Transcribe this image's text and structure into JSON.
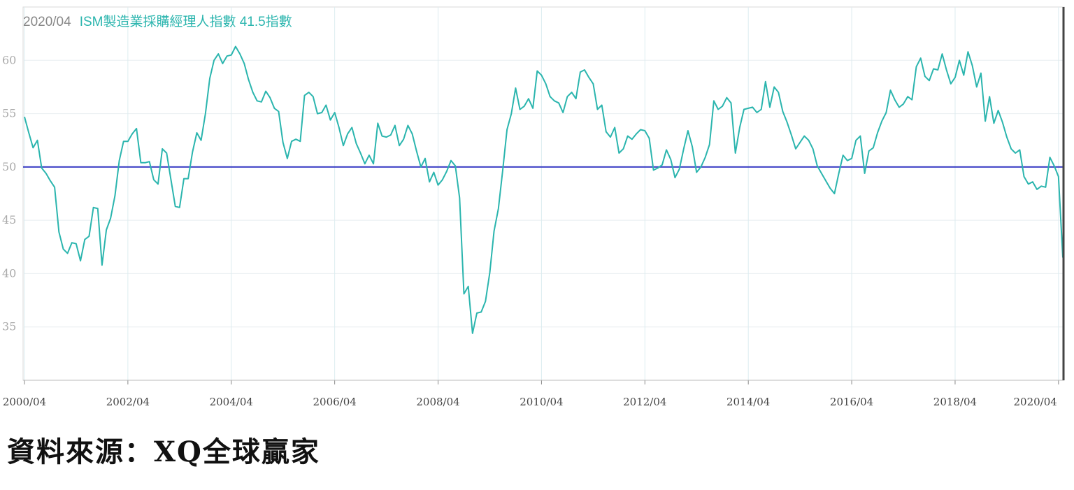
{
  "chart_data": {
    "type": "line",
    "title_date": "2020/04",
    "title_series": "ISM製造業採購經理人指數 41.5指數",
    "ylim": [
      30,
      65
    ],
    "yticks": [
      35,
      40,
      45,
      50,
      55,
      60
    ],
    "xticks": [
      "2000/04",
      "2002/04",
      "2004/04",
      "2006/04",
      "2008/04",
      "2010/04",
      "2012/04",
      "2014/04",
      "2016/04",
      "2018/04",
      "2020/04"
    ],
    "reference_line": 50,
    "grid": true,
    "x_start": "2000/04",
    "x_end": "2020/04",
    "series": [
      {
        "color": "#2bb5ae",
        "values": [
          54.7,
          53.2,
          51.8,
          52.5,
          49.9,
          49.4,
          48.7,
          48.1,
          43.9,
          42.3,
          41.9,
          42.9,
          42.8,
          41.2,
          43.2,
          43.5,
          46.2,
          46.1,
          40.8,
          44.1,
          45.2,
          47.3,
          50.6,
          52.4,
          52.4,
          53.1,
          53.6,
          50.4,
          50.4,
          50.5,
          48.8,
          48.4,
          51.7,
          51.3,
          48.8,
          46.3,
          46.2,
          48.9,
          48.9,
          51.4,
          53.2,
          52.5,
          55.0,
          58.3,
          60.0,
          60.6,
          59.7,
          60.4,
          60.5,
          61.3,
          60.6,
          59.7,
          58.2,
          57.0,
          56.2,
          56.1,
          57.1,
          56.5,
          55.5,
          55.2,
          52.3,
          50.8,
          52.4,
          52.6,
          52.4,
          56.7,
          57.0,
          56.6,
          55.0,
          55.1,
          55.8,
          54.4,
          55.1,
          53.7,
          52.0,
          53.1,
          53.7,
          52.2,
          51.3,
          50.3,
          51.1,
          50.3,
          54.1,
          52.9,
          52.8,
          53.0,
          53.9,
          52.0,
          52.6,
          53.9,
          53.1,
          51.5,
          50.0,
          50.8,
          48.6,
          49.5,
          48.3,
          48.8,
          49.6,
          50.6,
          50.1,
          47.1,
          38.1,
          38.8,
          34.4,
          36.3,
          36.4,
          37.4,
          40.1,
          44.0,
          46.1,
          49.7,
          53.5,
          55.0,
          57.4,
          55.4,
          55.7,
          56.4,
          55.5,
          59.0,
          58.6,
          57.8,
          56.6,
          56.2,
          56.0,
          55.1,
          56.6,
          57.0,
          56.4,
          58.9,
          59.1,
          58.4,
          57.8,
          55.4,
          55.8,
          53.3,
          52.8,
          53.7,
          51.3,
          51.7,
          52.9,
          52.6,
          53.1,
          53.5,
          53.4,
          52.7,
          49.7,
          49.9,
          50.2,
          51.6,
          50.7,
          49.0,
          49.8,
          51.7,
          53.4,
          51.9,
          49.5,
          50.0,
          50.9,
          52.1,
          56.2,
          55.4,
          55.7,
          56.5,
          56.0,
          51.3,
          53.7,
          55.4,
          55.5,
          55.6,
          55.1,
          55.4,
          58.0,
          55.6,
          57.5,
          57.0,
          55.2,
          54.2,
          53.0,
          51.7,
          52.3,
          52.9,
          52.5,
          51.7,
          50.1,
          49.4,
          48.7,
          48.0,
          47.5,
          49.4,
          51.1,
          50.6,
          50.8,
          52.5,
          52.9,
          49.4,
          51.5,
          51.8,
          53.2,
          54.3,
          55.1,
          57.2,
          56.3,
          55.6,
          55.9,
          56.6,
          56.3,
          59.4,
          60.2,
          58.5,
          58.1,
          59.2,
          59.1,
          60.6,
          59.1,
          57.8,
          58.4,
          60.0,
          58.6,
          60.8,
          59.5,
          57.5,
          58.8,
          54.3,
          56.6,
          54.1,
          55.3,
          54.2,
          52.8,
          51.7,
          51.3,
          51.6,
          49.1,
          48.4,
          48.6,
          47.9,
          48.2,
          48.1,
          50.9,
          50.1,
          49.1,
          41.5
        ]
      }
    ]
  },
  "source_note": "資料來源：XQ全球贏家"
}
